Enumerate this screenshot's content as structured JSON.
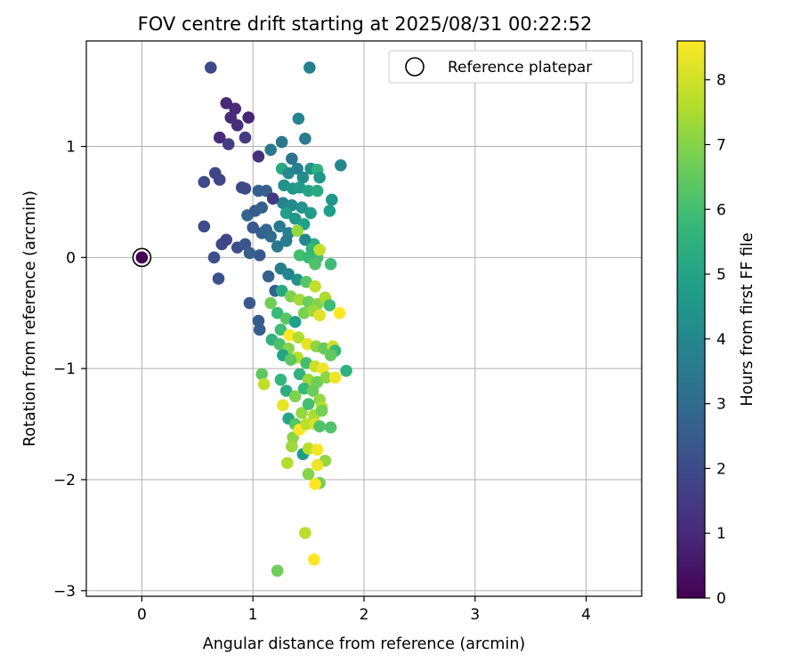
{
  "chart_data": {
    "type": "scatter",
    "title": "FOV centre drift starting at 2025/08/31 00:22:52",
    "xlabel": "Angular distance from reference (arcmin)",
    "ylabel": "Rotation from reference (arcmin)",
    "xlim": [
      -0.5,
      4.5
    ],
    "ylim": [
      -3.05,
      1.95
    ],
    "xticks": [
      0,
      1,
      2,
      3,
      4
    ],
    "yticks": [
      -3,
      -2,
      -1,
      0,
      1
    ],
    "xtick_labels": [
      "0",
      "1",
      "2",
      "3",
      "4"
    ],
    "ytick_labels": [
      "−3",
      "−2",
      "−1",
      "0",
      "1"
    ],
    "grid": true,
    "legend": {
      "position": "top-right",
      "entries": [
        "Reference platepar"
      ]
    },
    "reference_point": {
      "x": 0,
      "y": 0,
      "hours": 0
    },
    "colorbar": {
      "label": "Hours from first FF file",
      "colormap": "viridis",
      "range": [
        0,
        8.6
      ],
      "ticks": [
        0,
        1,
        2,
        3,
        4,
        5,
        6,
        7,
        8
      ],
      "tick_labels": [
        "0",
        "1",
        "2",
        "3",
        "4",
        "5",
        "6",
        "7",
        "8"
      ]
    },
    "colormap_stops": [
      "#440154",
      "#482878",
      "#3e4989",
      "#31688e",
      "#26828e",
      "#1f9e89",
      "#35b779",
      "#6ece58",
      "#b5de2b",
      "#fde725"
    ],
    "points": [
      [
        0.62,
        1.71,
        1.9
      ],
      [
        1.51,
        1.71,
        3.8
      ],
      [
        0.76,
        1.39,
        1.0
      ],
      [
        0.84,
        1.34,
        1.0
      ],
      [
        0.8,
        1.26,
        1.1
      ],
      [
        0.96,
        1.26,
        0.9
      ],
      [
        0.86,
        1.19,
        1.2
      ],
      [
        0.7,
        1.08,
        1.0
      ],
      [
        0.93,
        1.08,
        1.5
      ],
      [
        0.78,
        1.02,
        1.6
      ],
      [
        1.05,
        0.91,
        1.2
      ],
      [
        0.66,
        0.76,
        1.8
      ],
      [
        0.7,
        0.7,
        1.8
      ],
      [
        0.56,
        0.68,
        1.9
      ],
      [
        0.9,
        0.63,
        2.0
      ],
      [
        0.93,
        0.62,
        2.0
      ],
      [
        1.05,
        0.6,
        2.6
      ],
      [
        1.12,
        0.6,
        2.6
      ],
      [
        0.95,
        0.38,
        2.8
      ],
      [
        1.02,
        0.42,
        2.5
      ],
      [
        1.08,
        0.45,
        2.7
      ],
      [
        0.56,
        0.28,
        2.0
      ],
      [
        0.72,
        0.12,
        1.9
      ],
      [
        0.76,
        0.16,
        1.8
      ],
      [
        0.86,
        0.09,
        2.1
      ],
      [
        0.93,
        0.12,
        2.3
      ],
      [
        1.0,
        0.27,
        2.4
      ],
      [
        1.08,
        0.22,
        2.6
      ],
      [
        1.12,
        0.25,
        2.8
      ],
      [
        1.16,
        0.19,
        3.0
      ],
      [
        1.06,
        0.02,
        2.4
      ],
      [
        0.97,
        0.04,
        2.6
      ],
      [
        0.65,
        0.0,
        2.2
      ],
      [
        0.69,
        -0.19,
        2.2
      ],
      [
        0.97,
        -0.41,
        2.4
      ],
      [
        1.05,
        -0.57,
        2.5
      ],
      [
        1.06,
        -0.65,
        2.6
      ],
      [
        1.14,
        -0.17,
        2.7
      ],
      [
        1.2,
        -0.3,
        2.7
      ],
      [
        1.26,
        1.04,
        3.4
      ],
      [
        1.16,
        0.97,
        3.5
      ],
      [
        1.35,
        0.89,
        3.3
      ],
      [
        1.41,
        1.25,
        3.9
      ],
      [
        1.47,
        1.07,
        3.6
      ],
      [
        1.26,
        0.8,
        5.2
      ],
      [
        1.32,
        0.76,
        4.1
      ],
      [
        1.4,
        0.8,
        3.8
      ],
      [
        1.45,
        0.72,
        4.2
      ],
      [
        1.52,
        0.8,
        4.4
      ],
      [
        1.58,
        0.79,
        5.5
      ],
      [
        1.6,
        0.72,
        4.6
      ],
      [
        1.71,
        0.52,
        4.5
      ],
      [
        1.79,
        0.83,
        4.0
      ],
      [
        1.28,
        0.65,
        4.3
      ],
      [
        1.36,
        0.62,
        4.5
      ],
      [
        1.42,
        0.63,
        4.7
      ],
      [
        1.5,
        0.6,
        5.0
      ],
      [
        1.58,
        0.6,
        5.3
      ],
      [
        1.69,
        0.42,
        4.8
      ],
      [
        1.27,
        0.49,
        3.9
      ],
      [
        1.35,
        0.47,
        4.1
      ],
      [
        1.44,
        0.45,
        4.4
      ],
      [
        1.52,
        0.4,
        4.7
      ],
      [
        1.18,
        0.53,
        1.5
      ],
      [
        1.3,
        0.4,
        4.8
      ],
      [
        1.38,
        0.35,
        4.5
      ],
      [
        1.46,
        0.3,
        4.9
      ],
      [
        1.55,
        0.12,
        5.3
      ],
      [
        1.58,
        0.0,
        6.0
      ],
      [
        1.24,
        0.28,
        3.5
      ],
      [
        1.32,
        0.22,
        3.8
      ],
      [
        1.4,
        0.24,
        7.2
      ],
      [
        1.47,
        0.16,
        4.0
      ],
      [
        1.53,
        0.08,
        5.6
      ],
      [
        1.6,
        0.07,
        7.8
      ],
      [
        1.22,
        0.1,
        3.4
      ],
      [
        1.3,
        0.15,
        3.6
      ],
      [
        1.42,
        0.02,
        6.0
      ],
      [
        1.5,
        0.0,
        5.8
      ],
      [
        1.56,
        -0.06,
        6.2
      ],
      [
        1.25,
        -0.1,
        3.7
      ],
      [
        1.32,
        -0.15,
        3.9
      ],
      [
        1.4,
        -0.2,
        4.4
      ],
      [
        1.48,
        -0.22,
        6.3
      ],
      [
        1.56,
        -0.26,
        7.8
      ],
      [
        1.7,
        -0.06,
        5.9
      ],
      [
        1.26,
        -0.3,
        5.2
      ],
      [
        1.34,
        -0.35,
        6.9
      ],
      [
        1.42,
        -0.38,
        7.4
      ],
      [
        1.5,
        -0.4,
        6.6
      ],
      [
        1.58,
        -0.42,
        7.0
      ],
      [
        1.65,
        -0.36,
        7.5
      ],
      [
        1.69,
        -0.43,
        5.9
      ],
      [
        1.78,
        -0.5,
        8.6
      ],
      [
        1.16,
        -0.41,
        6.7
      ],
      [
        1.22,
        -0.5,
        5.8
      ],
      [
        1.3,
        -0.55,
        6.3
      ],
      [
        1.38,
        -0.58,
        4.8
      ],
      [
        1.46,
        -0.5,
        6.8
      ],
      [
        1.54,
        -0.48,
        7.3
      ],
      [
        1.6,
        -0.52,
        8.2
      ],
      [
        1.25,
        -0.65,
        5.9
      ],
      [
        1.33,
        -0.7,
        8.6
      ],
      [
        1.41,
        -0.72,
        7.6
      ],
      [
        1.49,
        -0.78,
        8.3
      ],
      [
        1.57,
        -0.8,
        7.1
      ],
      [
        1.64,
        -0.82,
        6.5
      ],
      [
        1.72,
        -0.8,
        7.9
      ],
      [
        1.74,
        -0.84,
        5.8
      ],
      [
        1.17,
        -0.74,
        5.5
      ],
      [
        1.24,
        -0.78,
        6.1
      ],
      [
        1.32,
        -0.82,
        7.0
      ],
      [
        1.4,
        -0.9,
        7.7
      ],
      [
        1.48,
        -0.95,
        6.0
      ],
      [
        1.56,
        -0.98,
        7.9
      ],
      [
        1.63,
        -1.0,
        8.4
      ],
      [
        1.7,
        -0.88,
        6.5
      ],
      [
        1.84,
        -1.02,
        5.5
      ],
      [
        1.27,
        -0.88,
        5.0
      ],
      [
        1.34,
        -0.92,
        6.4
      ],
      [
        1.42,
        -1.05,
        5.5
      ],
      [
        1.5,
        -1.1,
        7.3
      ],
      [
        1.58,
        -1.12,
        6.7
      ],
      [
        1.66,
        -1.08,
        7.1
      ],
      [
        1.74,
        -1.08,
        8.4
      ],
      [
        1.08,
        -1.05,
        6.4
      ],
      [
        1.1,
        -1.14,
        7.8
      ],
      [
        1.25,
        -1.1,
        5.7
      ],
      [
        1.3,
        -1.2,
        5.3
      ],
      [
        1.38,
        -1.25,
        6.9
      ],
      [
        1.46,
        -1.18,
        5.8
      ],
      [
        1.54,
        -1.2,
        6.6
      ],
      [
        1.6,
        -1.28,
        7.2
      ],
      [
        1.62,
        -1.35,
        7.7
      ],
      [
        1.27,
        -1.33,
        8.3
      ],
      [
        1.32,
        -1.45,
        5.1
      ],
      [
        1.38,
        -1.5,
        6.3
      ],
      [
        1.44,
        -1.4,
        7.2
      ],
      [
        1.5,
        -1.32,
        6.0
      ],
      [
        1.55,
        -1.42,
        7.5
      ],
      [
        1.62,
        -1.38,
        6.8
      ],
      [
        1.36,
        -1.62,
        7.1
      ],
      [
        1.42,
        -1.55,
        8.6
      ],
      [
        1.48,
        -1.5,
        7.7
      ],
      [
        1.56,
        -1.5,
        8.1
      ],
      [
        1.6,
        -1.52,
        6.2
      ],
      [
        1.7,
        -1.53,
        6.2
      ],
      [
        1.35,
        -1.7,
        7.3
      ],
      [
        1.45,
        -1.77,
        4.7
      ],
      [
        1.5,
        -1.72,
        7.7
      ],
      [
        1.58,
        -1.73,
        8.5
      ],
      [
        1.65,
        -1.83,
        7.2
      ],
      [
        1.31,
        -1.85,
        7.6
      ],
      [
        1.58,
        -1.87,
        8.4
      ],
      [
        1.5,
        -1.95,
        7.0
      ],
      [
        1.6,
        -2.03,
        6.8
      ],
      [
        1.56,
        -2.04,
        8.6
      ],
      [
        1.47,
        -2.48,
        7.7
      ],
      [
        1.55,
        -2.72,
        8.6
      ],
      [
        1.22,
        -2.82,
        6.7
      ]
    ]
  }
}
